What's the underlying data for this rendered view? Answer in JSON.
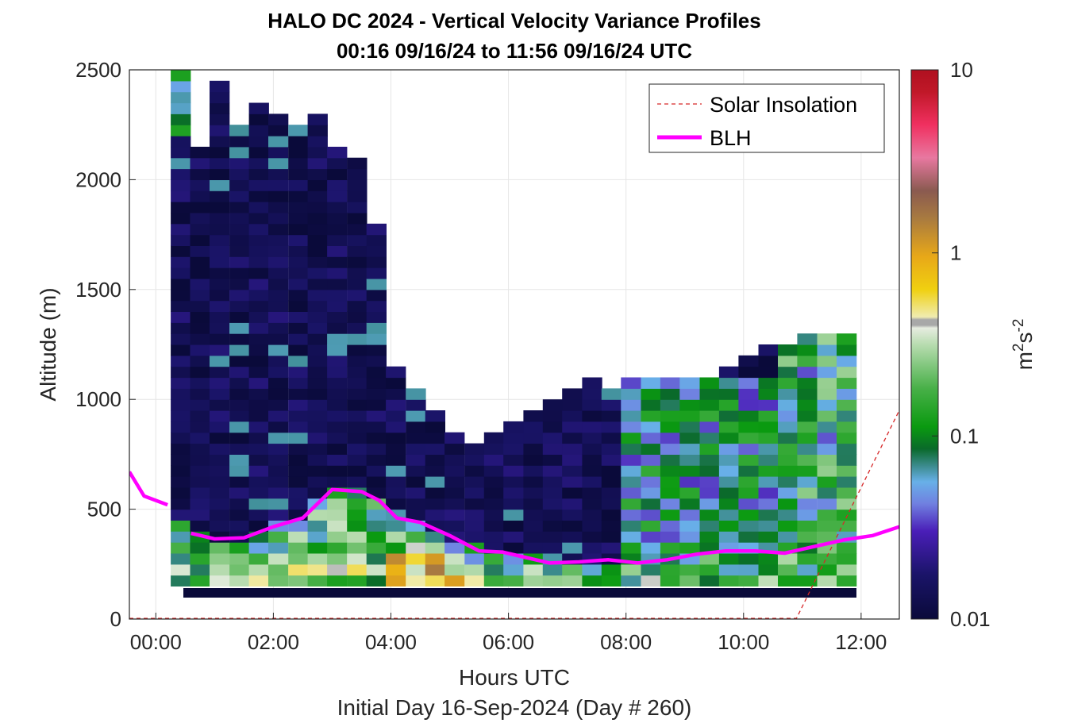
{
  "chart_data": {
    "type": "heatmap",
    "title": "HALO DC 2024 - Vertical Velocity Variance Profiles",
    "subtitle": "00:16 09/16/24 to 11:56 09/16/24  UTC",
    "xlabel": "Hours UTC",
    "xlabel2": "Initial Day 16-Sep-2024 (Day # 260)",
    "ylabel": "Altitude (m)",
    "colorbar_label_base": "m",
    "colorbar_label_exp1": "2",
    "colorbar_label_mid": "s",
    "colorbar_label_exp2": "-2",
    "xlim": [
      -0.45,
      12.65
    ],
    "ylim": [
      0,
      2500
    ],
    "grid": true,
    "x_ticks": [
      0,
      2,
      4,
      6,
      8,
      10,
      12
    ],
    "x_tick_labels": [
      "00:00",
      "02:00",
      "04:00",
      "06:00",
      "08:00",
      "10:00",
      "12:00"
    ],
    "y_ticks": [
      0,
      500,
      1000,
      1500,
      2000,
      2500
    ],
    "y_tick_labels": [
      "0",
      "500",
      "1000",
      "1500",
      "2000",
      "2500"
    ],
    "colorbar": {
      "scale": "log",
      "range": [
        0.01,
        10
      ],
      "ticks": [
        0.01,
        0.1,
        1,
        10
      ],
      "tick_labels": [
        "0.01",
        "0.1",
        "1",
        "10"
      ]
    },
    "legend": {
      "position": "top-right",
      "entries": [
        {
          "label": "Solar Insolation",
          "color": "#d62728",
          "style": "dashed"
        },
        {
          "label": "BLH",
          "color": "#ff00ff",
          "style": "solid"
        }
      ]
    },
    "bin_width_hours": 0.333,
    "bin_height_m": 50,
    "columns": [
      {
        "t": 0.42,
        "top": 2500
      },
      {
        "t": 0.75,
        "top": 2150
      },
      {
        "t": 1.08,
        "top": 2450
      },
      {
        "t": 1.42,
        "top": 2250
      },
      {
        "t": 1.75,
        "top": 2350
      },
      {
        "t": 2.08,
        "top": 2300
      },
      {
        "t": 2.42,
        "top": 2250
      },
      {
        "t": 2.75,
        "top": 2300
      },
      {
        "t": 3.08,
        "top": 2150
      },
      {
        "t": 3.42,
        "top": 2100
      },
      {
        "t": 3.75,
        "top": 1800
      },
      {
        "t": 4.08,
        "top": 1150
      },
      {
        "t": 4.42,
        "top": 1050
      },
      {
        "t": 4.75,
        "top": 950
      },
      {
        "t": 5.08,
        "top": 850
      },
      {
        "t": 5.42,
        "top": 800
      },
      {
        "t": 5.75,
        "top": 850
      },
      {
        "t": 6.08,
        "top": 900
      },
      {
        "t": 6.42,
        "top": 950
      },
      {
        "t": 6.75,
        "top": 1000
      },
      {
        "t": 7.08,
        "top": 1050
      },
      {
        "t": 7.42,
        "top": 1100
      },
      {
        "t": 7.75,
        "top": 1050
      },
      {
        "t": 8.08,
        "top": 1100
      },
      {
        "t": 8.42,
        "top": 1100
      },
      {
        "t": 8.75,
        "top": 1100
      },
      {
        "t": 9.08,
        "top": 1100
      },
      {
        "t": 9.42,
        "top": 1100
      },
      {
        "t": 9.75,
        "top": 1150
      },
      {
        "t": 10.08,
        "top": 1200
      },
      {
        "t": 10.42,
        "top": 1250
      },
      {
        "t": 10.75,
        "top": 1250
      },
      {
        "t": 11.08,
        "top": 1300
      },
      {
        "t": 11.42,
        "top": 1300
      },
      {
        "t": 11.75,
        "top": 1300
      }
    ],
    "blh": {
      "name": "BLH",
      "x": [
        -0.45,
        -0.2,
        0.2,
        0.6,
        1.0,
        1.5,
        2.0,
        2.5,
        3.0,
        3.5,
        3.8,
        4.1,
        4.5,
        5.0,
        5.5,
        5.9,
        6.3,
        6.7,
        7.2,
        7.7,
        8.2,
        8.7,
        9.2,
        9.7,
        10.2,
        10.7,
        11.2,
        11.7,
        12.2,
        12.65
      ],
      "y": [
        670,
        560,
        520,
        390,
        365,
        370,
        420,
        460,
        590,
        580,
        540,
        460,
        440,
        380,
        310,
        305,
        280,
        255,
        260,
        270,
        255,
        270,
        295,
        310,
        310,
        300,
        330,
        360,
        380,
        420
      ]
    },
    "solar_insolation": {
      "name": "Solar Insolation",
      "x": [
        -0.45,
        10.9,
        12.65
      ],
      "y": [
        3,
        3,
        950
      ]
    }
  }
}
